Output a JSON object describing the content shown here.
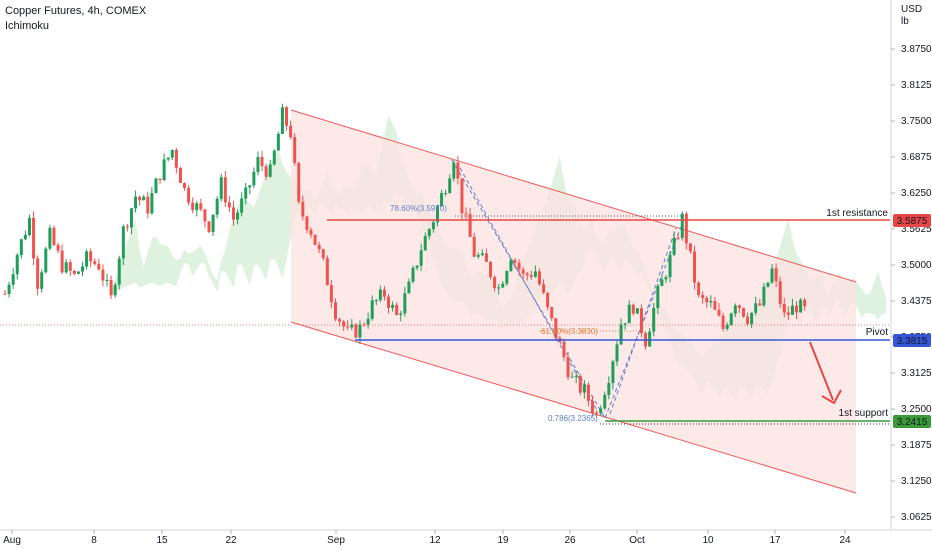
{
  "header": {
    "title": "Copper Futures, 4h, COMEX",
    "indicator": "Ichimoku",
    "currency": "USD",
    "unit": "lb"
  },
  "colors": {
    "up": "#26a69a",
    "up_fill": "#1f9e5a",
    "down": "#ef5350",
    "channel_line": "#f05a5a",
    "channel_fill": "#fde2e2",
    "resistance": "#e84646",
    "pivot": "#3656d8",
    "support": "#3a9a3a",
    "fib_blue": "#5b7fc7",
    "fib_orange": "#e0803a",
    "cloud_green": "#dcefdc",
    "cloud_red": "#f8d0d0"
  },
  "chart_data": {
    "type": "candlestick",
    "title": "Copper Futures, 4h, COMEX",
    "ylabel": "USD/lb",
    "ylim": [
      3.04,
      3.96
    ],
    "y_ticks": [
      "3.8750",
      "3.8125",
      "3.7500",
      "3.6875",
      "3.6250",
      "3.5625",
      "3.5000",
      "3.4375",
      "3.3750",
      "3.3125",
      "3.2500",
      "3.1875",
      "3.1250",
      "3.0625"
    ],
    "x_ticks": [
      "Aug",
      "8",
      "15",
      "22",
      "Sep",
      "12",
      "19",
      "26",
      "Oct",
      "10",
      "17",
      "24"
    ],
    "price_path": [
      {
        "t": 0,
        "p": 3.45
      },
      {
        "t": 3,
        "p": 3.52
      },
      {
        "t": 6,
        "p": 3.58
      },
      {
        "t": 8,
        "p": 3.47
      },
      {
        "t": 11,
        "p": 3.55
      },
      {
        "t": 14,
        "p": 3.5
      },
      {
        "t": 17,
        "p": 3.48
      },
      {
        "t": 20,
        "p": 3.51
      },
      {
        "t": 23,
        "p": 3.5
      },
      {
        "t": 26,
        "p": 3.44
      },
      {
        "t": 29,
        "p": 3.56
      },
      {
        "t": 32,
        "p": 3.62
      },
      {
        "t": 35,
        "p": 3.6
      },
      {
        "t": 38,
        "p": 3.66
      },
      {
        "t": 41,
        "p": 3.7
      },
      {
        "t": 44,
        "p": 3.63
      },
      {
        "t": 47,
        "p": 3.6
      },
      {
        "t": 50,
        "p": 3.57
      },
      {
        "t": 53,
        "p": 3.64
      },
      {
        "t": 56,
        "p": 3.58
      },
      {
        "t": 59,
        "p": 3.62
      },
      {
        "t": 62,
        "p": 3.68
      },
      {
        "t": 65,
        "p": 3.66
      },
      {
        "t": 68,
        "p": 3.76
      },
      {
        "t": 70,
        "p": 3.73
      },
      {
        "t": 72,
        "p": 3.6
      },
      {
        "t": 75,
        "p": 3.56
      },
      {
        "t": 78,
        "p": 3.5
      },
      {
        "t": 81,
        "p": 3.42
      },
      {
        "t": 84,
        "p": 3.38
      },
      {
        "t": 87,
        "p": 3.39
      },
      {
        "t": 90,
        "p": 3.43
      },
      {
        "t": 93,
        "p": 3.45
      },
      {
        "t": 96,
        "p": 3.41
      },
      {
        "t": 99,
        "p": 3.46
      },
      {
        "t": 102,
        "p": 3.53
      },
      {
        "t": 105,
        "p": 3.58
      },
      {
        "t": 108,
        "p": 3.64
      },
      {
        "t": 110,
        "p": 3.69
      },
      {
        "t": 112,
        "p": 3.6
      },
      {
        "t": 115,
        "p": 3.52
      },
      {
        "t": 118,
        "p": 3.5
      },
      {
        "t": 121,
        "p": 3.46
      },
      {
        "t": 124,
        "p": 3.52
      },
      {
        "t": 127,
        "p": 3.48
      },
      {
        "t": 130,
        "p": 3.49
      },
      {
        "t": 133,
        "p": 3.42
      },
      {
        "t": 136,
        "p": 3.36
      },
      {
        "t": 139,
        "p": 3.3
      },
      {
        "t": 142,
        "p": 3.28
      },
      {
        "t": 145,
        "p": 3.24
      },
      {
        "t": 148,
        "p": 3.31
      },
      {
        "t": 151,
        "p": 3.4
      },
      {
        "t": 154,
        "p": 3.43
      },
      {
        "t": 157,
        "p": 3.37
      },
      {
        "t": 160,
        "p": 3.45
      },
      {
        "t": 163,
        "p": 3.51
      },
      {
        "t": 166,
        "p": 3.58
      },
      {
        "t": 168,
        "p": 3.51
      },
      {
        "t": 170,
        "p": 3.44
      },
      {
        "t": 173,
        "p": 3.43
      },
      {
        "t": 176,
        "p": 3.39
      },
      {
        "t": 179,
        "p": 3.44
      },
      {
        "t": 182,
        "p": 3.41
      },
      {
        "t": 185,
        "p": 3.43
      },
      {
        "t": 188,
        "p": 3.49
      },
      {
        "t": 191,
        "p": 3.41
      },
      {
        "t": 194,
        "p": 3.43
      },
      {
        "t": 196,
        "p": 3.42
      }
    ],
    "levels": [
      {
        "name": "1st resistance",
        "value": 3.5875,
        "label": "3.5875",
        "role": "resistance"
      },
      {
        "name": "Pivot",
        "value": 3.3815,
        "label": "3.3815",
        "role": "pivot"
      },
      {
        "name": "1st support",
        "value": 3.2415,
        "label": "3.2415",
        "role": "support"
      }
    ],
    "fib_labels": [
      {
        "text": "78.60%(3.5970)",
        "color": "fib_blue"
      },
      {
        "text": "61.80%(3.3830)",
        "color": "fib_orange"
      },
      {
        "text": "0.786(3.2365)",
        "color": "fib_blue"
      }
    ]
  }
}
